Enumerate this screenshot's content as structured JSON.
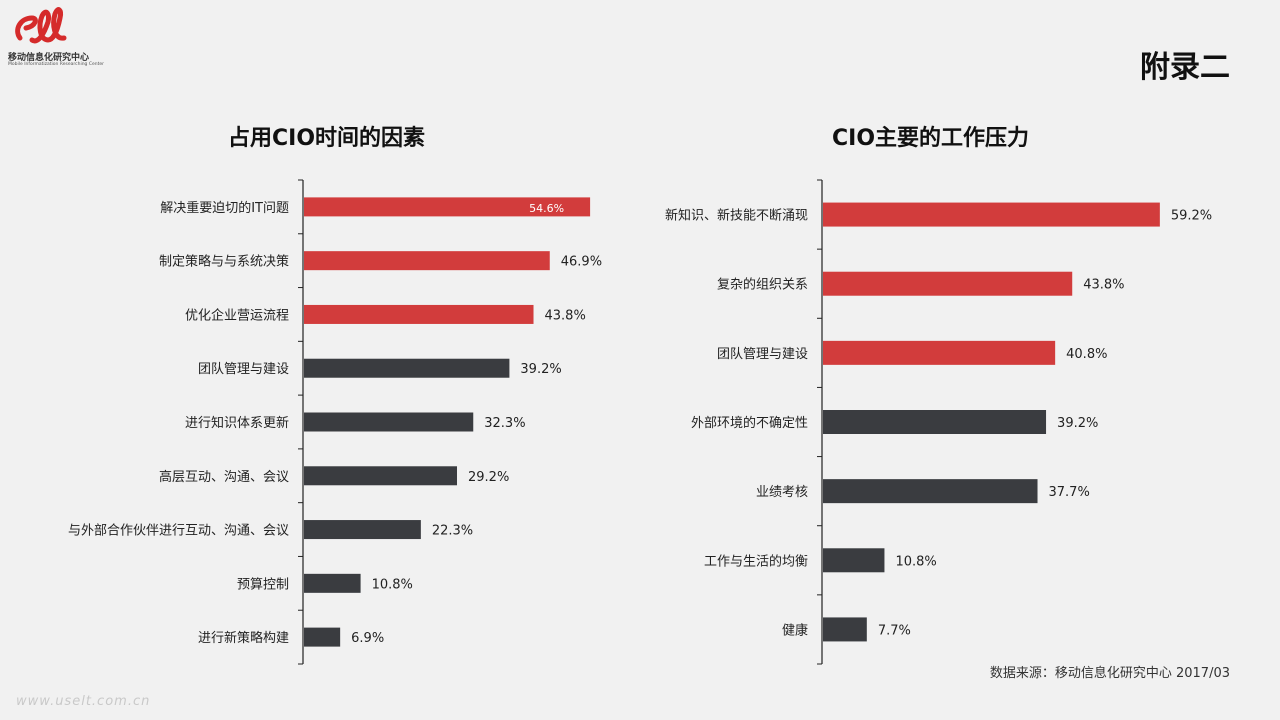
{
  "header": {
    "logo_text_cn": "移动信息化研究中心",
    "logo_text_en": "Mobile Informatization Researching Center",
    "appendix": "附录二"
  },
  "footer": {
    "source": "数据来源：移动信息化研究中心 2017/03",
    "watermark": "www.uselt.com.cn"
  },
  "colors": {
    "highlight": "#d23c3c",
    "normal": "#3a3c40",
    "axis": "#222222"
  },
  "chart_data": [
    {
      "type": "bar",
      "orientation": "horizontal",
      "title": "占用CIO时间的因素",
      "categories": [
        "解决重要迫切的IT问题",
        "制定策略与与系统决策",
        "优化企业营运流程",
        "团队管理与建设",
        "进行知识体系更新",
        "高层互动、沟通、会议",
        "与外部合作伙伴进行互动、沟通、会议",
        "预算控制",
        "进行新策略构建"
      ],
      "values": [
        54.6,
        46.9,
        43.8,
        39.2,
        32.3,
        29.2,
        22.3,
        10.8,
        6.9
      ],
      "labels": [
        "54.6%",
        "46.9%",
        "43.8%",
        "39.2%",
        "32.3%",
        "29.2%",
        "22.3%",
        "10.8%",
        "6.9%"
      ],
      "highlight_top": 3,
      "xlim": [
        0,
        100
      ],
      "unit": "%"
    },
    {
      "type": "bar",
      "orientation": "horizontal",
      "title": "CIO主要的工作压力",
      "categories": [
        "新知识、新技能不断涌现",
        "复杂的组织关系",
        "团队管理与建设",
        "外部环境的不确定性",
        "业绩考核",
        "工作与生活的均衡",
        "健康"
      ],
      "values": [
        59.2,
        43.8,
        40.8,
        39.2,
        37.7,
        10.8,
        7.7
      ],
      "labels": [
        "59.2%",
        "43.8%",
        "40.8%",
        "39.2%",
        "37.7%",
        "10.8%",
        "7.7%"
      ],
      "highlight_top": 3,
      "xlim": [
        0,
        100
      ],
      "unit": "%"
    }
  ]
}
